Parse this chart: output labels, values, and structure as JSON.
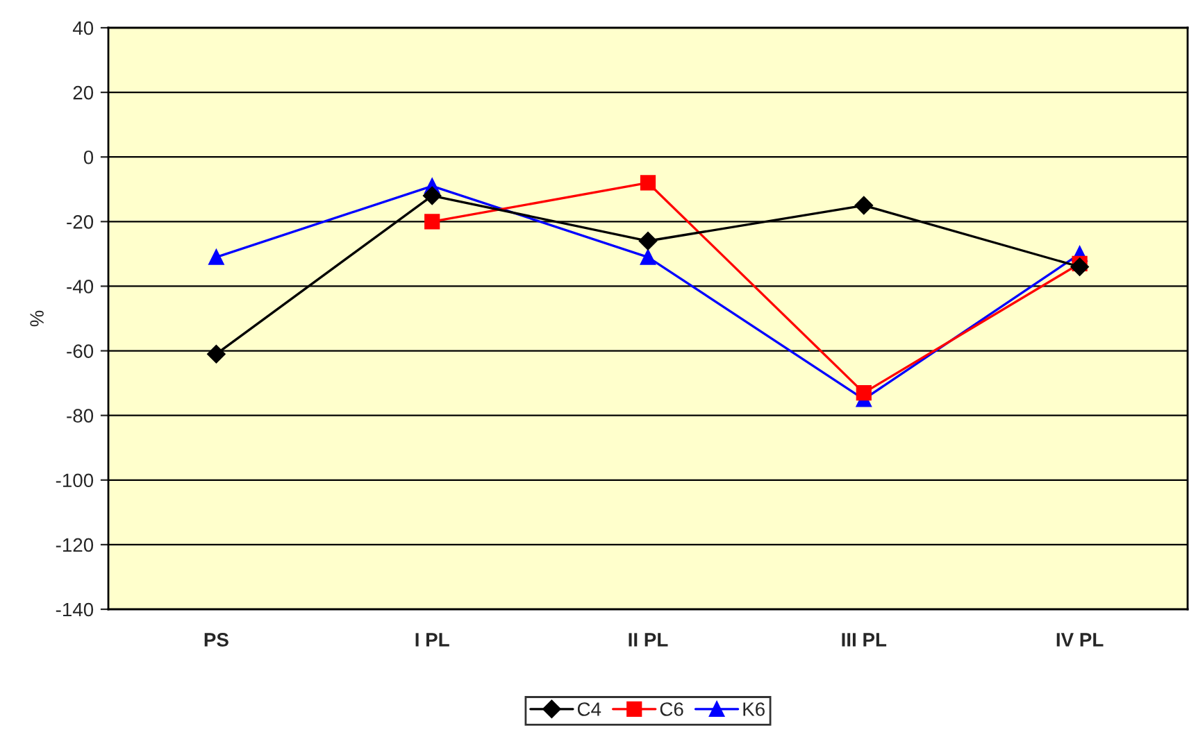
{
  "chart_data": {
    "type": "line",
    "ylabel": "%",
    "categories": [
      "PS",
      "I PL",
      "II PL",
      "III PL",
      "IV PL"
    ],
    "series": [
      {
        "name": "C4",
        "color": "#000000",
        "marker": "diamond",
        "values": [
          -61,
          -12,
          -26,
          -15,
          -34
        ]
      },
      {
        "name": "C6",
        "color": "#ff0000",
        "marker": "square",
        "values": [
          null,
          -20,
          -8,
          -73,
          -33
        ]
      },
      {
        "name": "K6",
        "color": "#0000ff",
        "marker": "triangle",
        "values": [
          -31,
          -9,
          -31,
          -75,
          -30
        ]
      }
    ],
    "ylim": [
      -140,
      40
    ],
    "yticks": [
      -140,
      -120,
      -100,
      -80,
      -60,
      -40,
      -20,
      0,
      20,
      40
    ],
    "grid": "y",
    "legend": "bottom",
    "line_style": "solid"
  }
}
